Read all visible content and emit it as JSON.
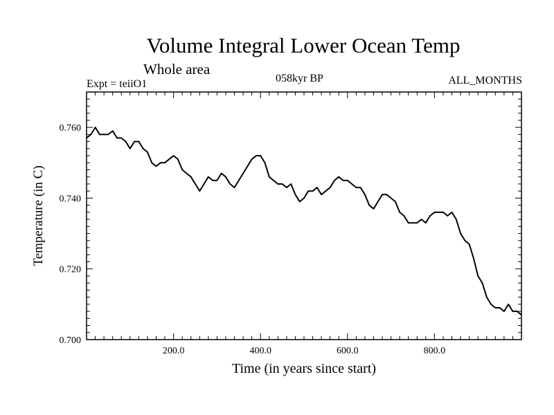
{
  "chart_data": {
    "type": "line",
    "title": "Volume Integral Lower Ocean Temp",
    "subtitle": "Whole area",
    "annotations": {
      "experiment": "Expt = teiiO1",
      "period": "058kyr BP",
      "months": "ALL_MONTHS"
    },
    "xlabel": "Time (in years since start)",
    "ylabel": "Temperature (in C)",
    "xlim": [
      0,
      1000
    ],
    "ylim": [
      0.7,
      0.77
    ],
    "x_ticks": [
      200,
      400,
      600,
      800
    ],
    "x_tick_labels": [
      "200.0",
      "400.0",
      "600.0",
      "800.0"
    ],
    "y_ticks": [
      0.7,
      0.72,
      0.74,
      0.76
    ],
    "y_tick_labels": [
      "0.700",
      "0.720",
      "0.740",
      "0.760"
    ],
    "grid": false,
    "series": [
      {
        "x": [
          0,
          10,
          20,
          30,
          40,
          50,
          60,
          70,
          80,
          90,
          100,
          110,
          120,
          130,
          140,
          150,
          160,
          170,
          180,
          190,
          200,
          210,
          220,
          230,
          240,
          250,
          260,
          270,
          280,
          290,
          300,
          310,
          320,
          330,
          340,
          350,
          360,
          370,
          380,
          390,
          400,
          410,
          420,
          430,
          440,
          450,
          460,
          470,
          480,
          490,
          500,
          510,
          520,
          530,
          540,
          550,
          560,
          570,
          580,
          590,
          600,
          610,
          620,
          630,
          640,
          650,
          660,
          670,
          680,
          690,
          700,
          710,
          720,
          730,
          740,
          750,
          760,
          770,
          780,
          790,
          800,
          810,
          820,
          830,
          840,
          850,
          860,
          870,
          880,
          890,
          900,
          910,
          920,
          930,
          940,
          950,
          960,
          970,
          980,
          990,
          1000
        ],
        "values": [
          0.757,
          0.758,
          0.76,
          0.758,
          0.758,
          0.758,
          0.759,
          0.757,
          0.757,
          0.756,
          0.754,
          0.756,
          0.756,
          0.754,
          0.753,
          0.75,
          0.749,
          0.75,
          0.75,
          0.751,
          0.752,
          0.751,
          0.748,
          0.747,
          0.746,
          0.744,
          0.742,
          0.744,
          0.746,
          0.745,
          0.745,
          0.747,
          0.746,
          0.744,
          0.743,
          0.745,
          0.747,
          0.749,
          0.751,
          0.752,
          0.752,
          0.75,
          0.746,
          0.745,
          0.744,
          0.744,
          0.743,
          0.744,
          0.741,
          0.739,
          0.74,
          0.742,
          0.742,
          0.743,
          0.741,
          0.742,
          0.743,
          0.745,
          0.746,
          0.745,
          0.745,
          0.744,
          0.743,
          0.743,
          0.741,
          0.738,
          0.737,
          0.739,
          0.741,
          0.741,
          0.74,
          0.739,
          0.736,
          0.735,
          0.733,
          0.733,
          0.733,
          0.734,
          0.733,
          0.735,
          0.736,
          0.736,
          0.736,
          0.735,
          0.736,
          0.734,
          0.73,
          0.728,
          0.727,
          0.723,
          0.718,
          0.716,
          0.712,
          0.71,
          0.709,
          0.709,
          0.708,
          0.71,
          0.708,
          0.708,
          0.707
        ]
      }
    ]
  }
}
